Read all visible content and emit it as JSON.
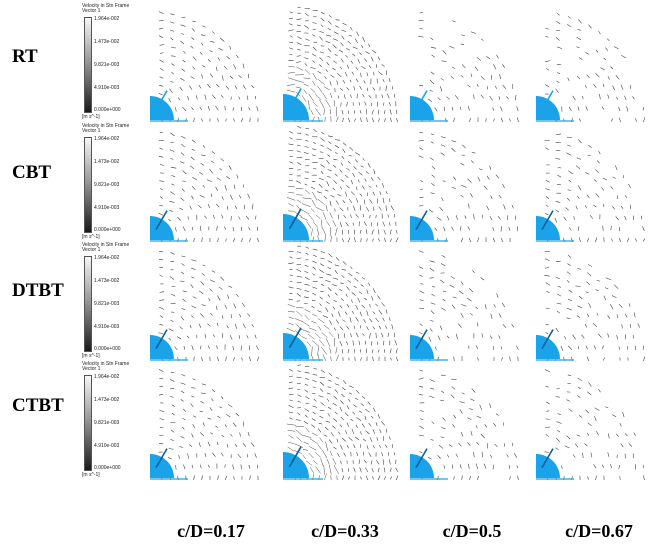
{
  "rows": [
    {
      "label": "RT"
    },
    {
      "label": "CBT"
    },
    {
      "label": "DTBT"
    },
    {
      "label": "CTBT"
    }
  ],
  "columns": [
    {
      "label": "c/D=0.17"
    },
    {
      "label": "c/D=0.33"
    },
    {
      "label": "c/D=0.5"
    },
    {
      "label": "c/D=0.67"
    }
  ],
  "legend": {
    "title": "Velocity in Stn Frame",
    "subtitle": "Vector 1",
    "ticks": [
      "1.964e-002",
      "1.473e-002",
      "9.821e-003",
      "4.910e-003",
      "0.000e+000"
    ],
    "unit": "[m s^-1]"
  },
  "colors": {
    "impeller": "#1aa3e8",
    "blade": "#0d5f9a",
    "vector": "#333333"
  }
}
